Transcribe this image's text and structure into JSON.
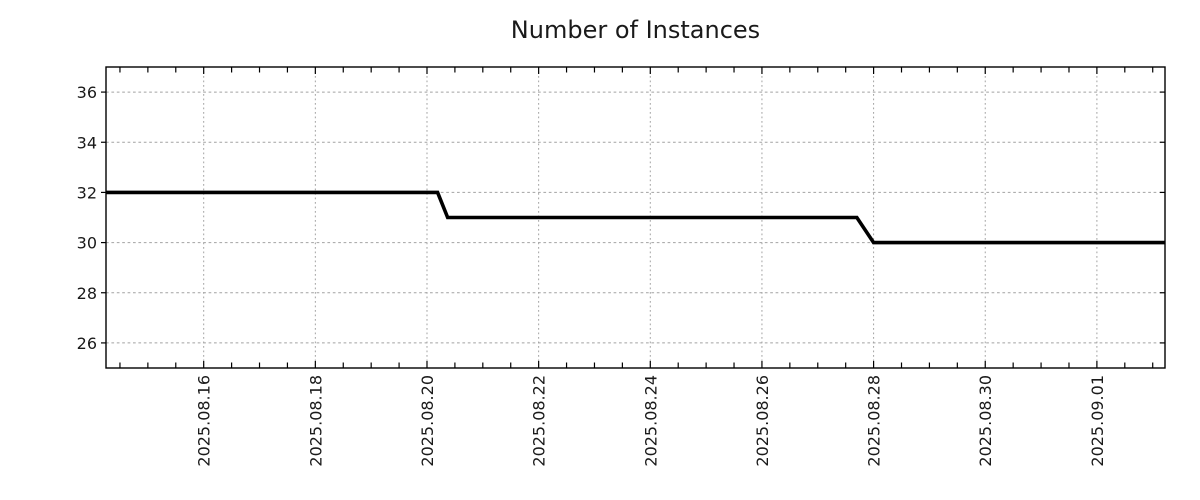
{
  "chart_data": {
    "type": "line",
    "title": "Number of Instances",
    "subtitle": "",
    "legend_position": "none",
    "grid": true,
    "x_axis": {
      "kind": "time",
      "epoch": "days since 2025-08-14 00:00",
      "range_days": [
        0.25,
        19.22
      ],
      "minor_tick_interval_days": 0.5,
      "major_ticks": [
        {
          "pos_days": 2,
          "label": "2025.08.16"
        },
        {
          "pos_days": 4,
          "label": "2025.08.18"
        },
        {
          "pos_days": 6,
          "label": "2025.08.20"
        },
        {
          "pos_days": 8,
          "label": "2025.08.22"
        },
        {
          "pos_days": 10,
          "label": "2025.08.24"
        },
        {
          "pos_days": 12,
          "label": "2025.08.26"
        },
        {
          "pos_days": 14,
          "label": "2025.08.28"
        },
        {
          "pos_days": 16,
          "label": "2025.08.30"
        },
        {
          "pos_days": 18,
          "label": "2025.09.01"
        }
      ]
    },
    "y_axis": {
      "range": [
        25,
        37
      ],
      "tick_values": [
        26,
        28,
        30,
        32,
        34,
        36
      ],
      "label": ""
    },
    "series": [
      {
        "name": "instances",
        "style": "step-line",
        "color": "#000000",
        "points_days_value": [
          [
            0.25,
            32
          ],
          [
            6.19,
            32
          ],
          [
            6.37,
            31
          ],
          [
            13.7,
            31
          ],
          [
            14.0,
            30
          ],
          [
            19.22,
            30
          ]
        ]
      }
    ]
  },
  "colors": {
    "background": "#ffffff",
    "line": "#000000",
    "grid": "#a2a2a2",
    "border": "#000000",
    "text": "#1a1a1a"
  }
}
